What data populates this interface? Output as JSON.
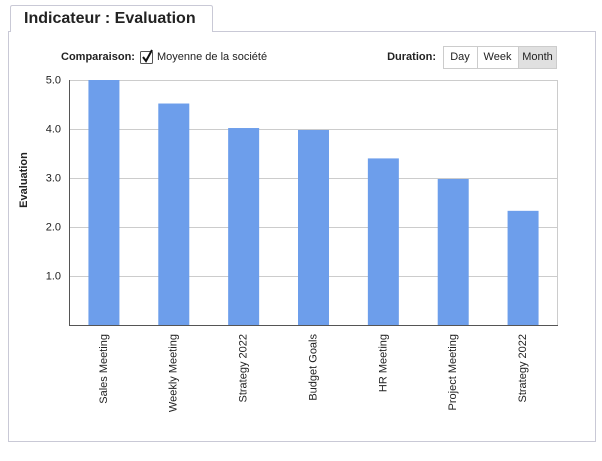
{
  "panel": {
    "tab_title": "Indicateur : Evaluation",
    "comparison_label": "Comparaison:",
    "checkbox_label": "Moyenne de la société",
    "duration_label": "Duration:",
    "durations": [
      "Day",
      "Week",
      "Month"
    ]
  },
  "chart_data": {
    "type": "bar",
    "y_label": "Evaluation",
    "categories": [
      "Sales Meeting",
      "Weekly Meeting",
      "Strategy 2022",
      "Budget Goals",
      "HR Meeting",
      "Project Meeting",
      "Strategy 2022"
    ],
    "values": [
      5.0,
      4.52,
      4.02,
      3.98,
      3.4,
      2.98,
      2.33
    ],
    "color": "#6d9eeb",
    "ylim": [
      0,
      5
    ],
    "yticks": [
      {
        "value": 1,
        "label": "1.0"
      },
      {
        "value": 2,
        "label": "2.0"
      },
      {
        "value": 3,
        "label": "3.0"
      },
      {
        "value": 4,
        "label": "4.0"
      },
      {
        "value": 5,
        "label": "5.0"
      }
    ],
    "grid": true
  }
}
